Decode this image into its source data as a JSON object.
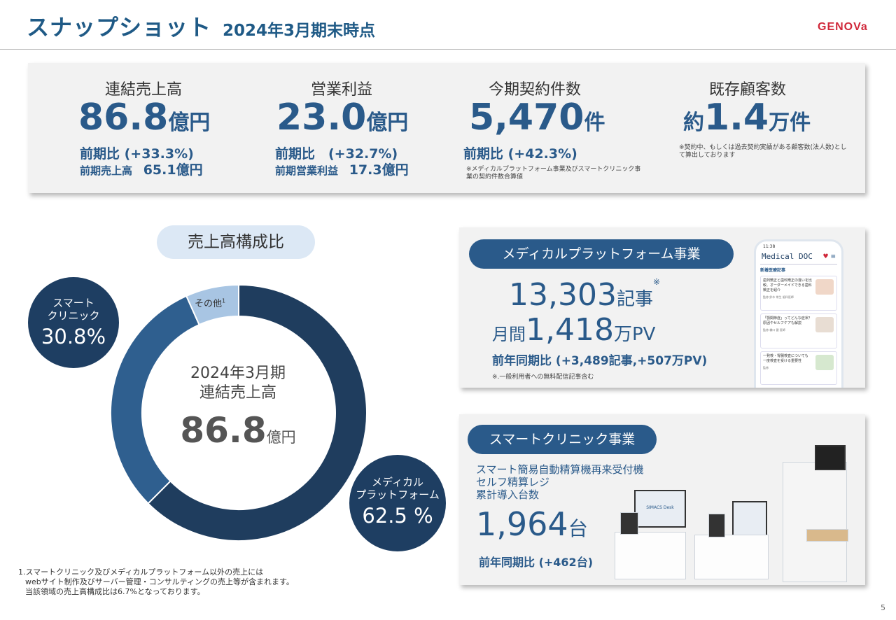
{
  "header": {
    "title": "スナップショット",
    "subtitle": "2024年3月期末時点",
    "logo": "GENOVa"
  },
  "kpis": [
    {
      "label": "連結売上高",
      "value": "86.8",
      "unit": "億円",
      "comp1": "前期比 (+33.3%)",
      "comp2_label": "前期売上高",
      "comp2_value": "65.1億円"
    },
    {
      "label": "営業利益",
      "value": "23.0",
      "unit": "億円",
      "comp1": "前期比　(+32.7%)",
      "comp2_label": "前期営業利益",
      "comp2_value": "17.3億円"
    },
    {
      "label": "今期契約件数",
      "value": "5,470",
      "unit": "件",
      "comp1": "前期比 (+42.3%)",
      "note": "※メディカルプラットフォーム事業及びスマートクリニック事業の契約件数合算値"
    },
    {
      "label": "既存顧客数",
      "prefix": "約",
      "value": "1.4",
      "unit": "万件",
      "note": "※契約中、もしくは過去契約実績がある顧客数(法人数)として算出しております"
    }
  ],
  "composition": {
    "pill_label": "売上高構成比",
    "center_line1": "2024年3月期",
    "center_line2": "連結売上高",
    "center_value": "86.8",
    "center_unit": "億円",
    "other_label": "その他",
    "other_sup": "1",
    "smart_label_1": "スマート",
    "smart_label_2": "クリニック",
    "smart_value": "30.8%",
    "medical_label_1": "メディカル",
    "medical_label_2": "プラットフォーム",
    "medical_value": "62.5 %",
    "footnote_1": "1.スマートクリニック及びメディカルプラットフォーム以外の売上には",
    "footnote_2": "webサイト制作及びサーバー管理・コンサルティングの売上等が含まれます。",
    "footnote_3": "当該領域の売上高構成比は6.7%となっております。"
  },
  "chart_data": {
    "type": "pie",
    "categories": [
      "メディカルプラットフォーム",
      "スマートクリニック",
      "その他"
    ],
    "values": [
      62.5,
      30.8,
      6.7
    ],
    "colors": [
      "#1f3d5e",
      "#2f5f8f",
      "#a8c5e3"
    ]
  },
  "medical_platform": {
    "title": "メディカルプラットフォーム事業",
    "articles_value": "13,303",
    "articles_unit": "記事",
    "articles_mark": "※",
    "pv_prefix": "月間",
    "pv_value": "1,418",
    "pv_unit": "万PV",
    "comparison": "前年同期比 (+3,489記事,+507万PV)",
    "note": "※.一般利用者への無料配信記事含む",
    "phone": {
      "time": "11:38",
      "app_name": "Medical DOC",
      "section": "新着医療記事",
      "article_1": "歯列矯正と歯科矯正の違いを比較、オーダーメイドできる歯科矯正を紹介",
      "article_1_author": "監修 鈴木 常生 歯科医師",
      "article_2": "「顎関節症」ってどんな症状？原因やセルフケアも解説",
      "article_2_author": "監修 橋口 健 医師",
      "article_3": "一発検・胃腸検査についても 一度検査を受ける重要性",
      "article_3_author": "監修"
    }
  },
  "smart_clinic": {
    "title": "スマートクリニック事業",
    "desc_1": "スマート簡易自動精算機再来受付機",
    "desc_2": "セルフ精算レジ",
    "desc_3": "累計導入台数",
    "value": "1,964",
    "unit": "台",
    "comparison": "前年同期比 (+462台)",
    "device_screen_label": "SIMACS Desk"
  },
  "page_number": "5"
}
